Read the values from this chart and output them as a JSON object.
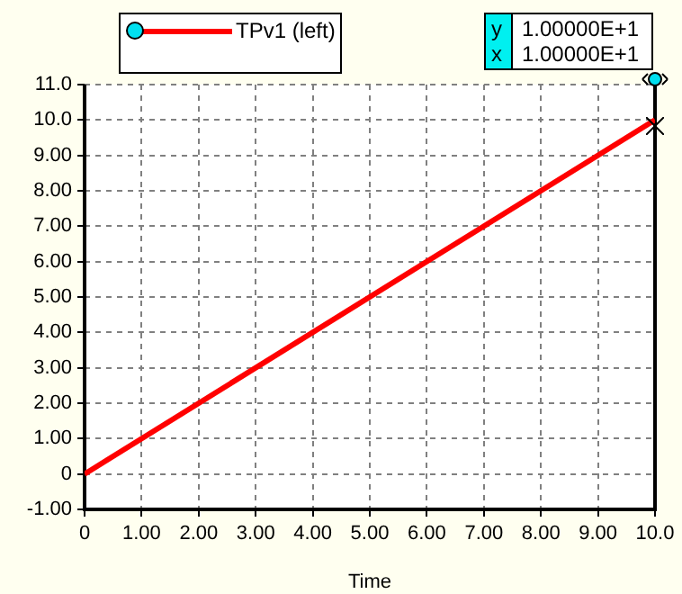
{
  "chart_data": {
    "type": "line",
    "xlabel": "Time",
    "x": [
      0,
      10
    ],
    "series": [
      {
        "name": "TPv1 (left)",
        "color": "#ff0000",
        "values": [
          0,
          10
        ]
      }
    ],
    "xlim": [
      0,
      10
    ],
    "xticks": [
      0,
      {
        "value": 1,
        "label": "1.00"
      },
      {
        "value": 2,
        "label": "2.00"
      },
      {
        "value": 3,
        "label": "3.00"
      },
      {
        "value": 4,
        "label": "4.00"
      },
      {
        "value": 5,
        "label": "5.00"
      },
      {
        "value": 6,
        "label": "6.00"
      },
      {
        "value": 7,
        "label": "7.00"
      },
      {
        "value": 8,
        "label": "8.00"
      },
      {
        "value": 9,
        "label": "9.00"
      },
      {
        "value": 10,
        "label": "10.0"
      }
    ],
    "ylim": [
      -1,
      11
    ],
    "yticks": [
      {
        "value": -1,
        "label": "-1.00"
      },
      0,
      {
        "value": 1,
        "label": "1.00"
      },
      {
        "value": 2,
        "label": "2.00"
      },
      {
        "value": 3,
        "label": "3.00"
      },
      {
        "value": 4,
        "label": "4.00"
      },
      {
        "value": 5,
        "label": "5.00"
      },
      {
        "value": 6,
        "label": "6.00"
      },
      {
        "value": 7,
        "label": "7.00"
      },
      {
        "value": 8,
        "label": "8.00"
      },
      {
        "value": 9,
        "label": "9.00"
      },
      {
        "value": 10,
        "label": "10.0"
      },
      {
        "value": 11,
        "label": "11.0"
      }
    ],
    "annotations": [
      "y",
      "1.00000E+1",
      "x",
      "1.00000E+1"
    ],
    "grid": true,
    "legend": "top left",
    "marker": "none",
    "line_style": "solid"
  }
}
